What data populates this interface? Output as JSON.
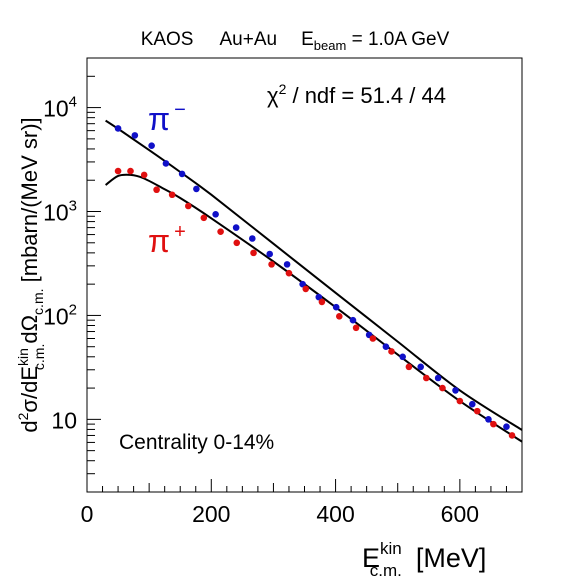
{
  "chart_data": {
    "type": "scatter",
    "title": {
      "experiment": "KAOS",
      "system": "Au+Au",
      "energy_symbol": "E",
      "energy_sub": "beam",
      "energy_value": " = 1.0A GeV"
    },
    "xlabel": {
      "main": "E",
      "sup": "kin",
      "sub": "c.m.",
      "unit": "[MeV]"
    },
    "ylabel": {
      "d": "d",
      "sup2": "2",
      "sigma_dE": "σ/dE",
      "sup_kin": "kin",
      "sub_cm": "c.m.",
      "dOmega": "dΩ",
      "sub_cm2": "c.m.",
      "unit": " [mbarn/(MeV sr)]"
    },
    "xlim": [
      0,
      700
    ],
    "ylim": [
      2,
      30000
    ],
    "yscale": "log",
    "x_ticks": [
      0,
      200,
      400,
      600
    ],
    "x_tick_labels": [
      "0",
      "200",
      "400",
      "600"
    ],
    "y_ticks": [
      {
        "value": 10,
        "base": "10",
        "exp": ""
      },
      {
        "value": 100,
        "base": "10",
        "exp": "2"
      },
      {
        "value": 1000,
        "base": "10",
        "exp": "3"
      },
      {
        "value": 10000,
        "base": "10",
        "exp": "4"
      }
    ],
    "annotations": {
      "chi2": {
        "chi": "χ",
        "sup": "2",
        "rest": " / ndf  =  51.4 / 44"
      },
      "centrality": "Centrality 0-14%",
      "pi_minus": {
        "base": "π",
        "sup": "−",
        "color": "#1010c8"
      },
      "pi_plus": {
        "base": "π",
        "sup": "+",
        "color": "#e01010"
      }
    },
    "series": [
      {
        "name": "π−",
        "color": "#1010c8",
        "x": [
          50,
          77,
          104,
          127,
          153,
          176,
          207,
          240,
          266,
          294,
          322,
          347,
          373,
          401,
          428,
          454,
          481,
          508,
          537,
          565,
          593,
          620,
          646,
          675
        ],
        "y": [
          6300,
          5400,
          4300,
          2900,
          2300,
          1650,
          940,
          700,
          550,
          390,
          310,
          200,
          150,
          120,
          90,
          65,
          50,
          40,
          32,
          25,
          19,
          14,
          10,
          8.5
        ]
      },
      {
        "name": "π+",
        "color": "#e01010",
        "x": [
          50,
          70,
          92,
          112,
          137,
          163,
          188,
          215,
          241,
          268,
          297,
          325,
          352,
          378,
          406,
          433,
          460,
          490,
          518,
          546,
          572,
          600,
          628,
          654,
          684
        ],
        "y": [
          2450,
          2450,
          2250,
          1620,
          1450,
          1130,
          870,
          640,
          500,
          400,
          310,
          255,
          180,
          135,
          98,
          76,
          60,
          45,
          32,
          25,
          20,
          15,
          12,
          9,
          7
        ]
      }
    ],
    "fits": [
      {
        "x": [
          30,
          60,
          100,
          150,
          200,
          300,
          400,
          500,
          600,
          700
        ],
        "y": [
          7500,
          5700,
          3900,
          2400,
          1450,
          490,
          165,
          56,
          19,
          7.9
        ]
      },
      {
        "x": [
          30,
          50,
          70,
          90,
          120,
          150,
          200,
          300,
          400,
          500,
          600,
          700
        ],
        "y": [
          1800,
          2200,
          2250,
          2100,
          1700,
          1350,
          860,
          330,
          120,
          42,
          15,
          6.1
        ]
      }
    ]
  }
}
